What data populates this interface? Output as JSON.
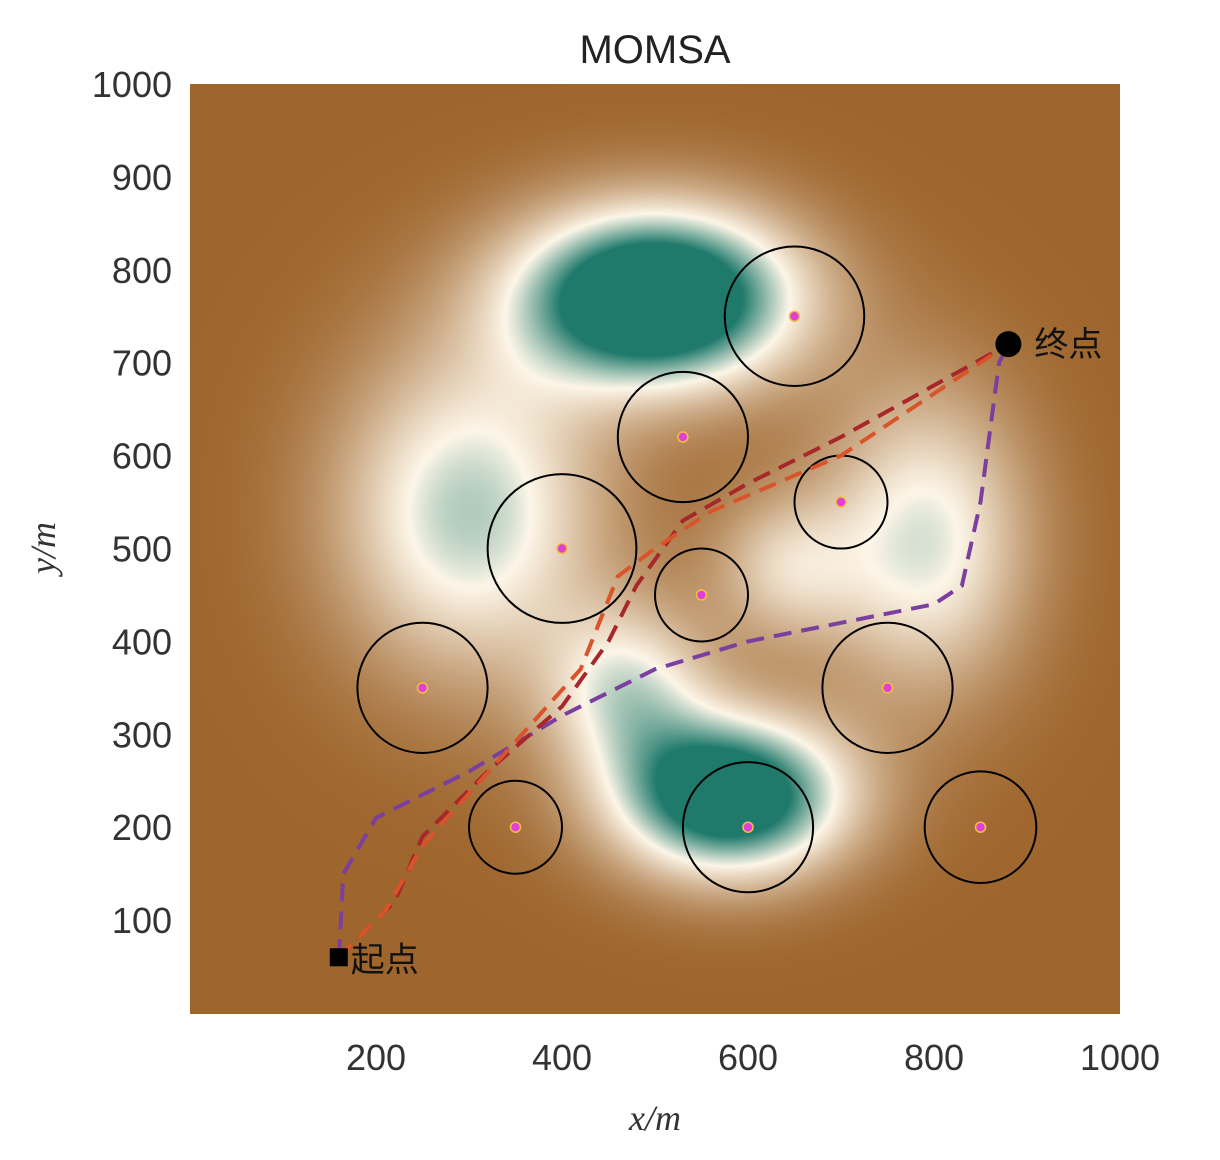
{
  "chart_data": {
    "type": "line",
    "title": "MOMSA",
    "xlabel": "x/m",
    "ylabel": "y/m",
    "xlim": [
      0,
      1000
    ],
    "ylim": [
      0,
      1000
    ],
    "xticks": [
      200,
      400,
      600,
      800,
      1000
    ],
    "yticks": [
      100,
      200,
      300,
      400,
      500,
      600,
      700,
      800,
      900,
      1000
    ],
    "grid": false,
    "start": {
      "label": "起点",
      "x": 160,
      "y": 60
    },
    "end": {
      "label": "终点",
      "x": 880,
      "y": 720
    },
    "obstacles": [
      {
        "x": 650,
        "y": 750,
        "r": 75
      },
      {
        "x": 530,
        "y": 620,
        "r": 70
      },
      {
        "x": 700,
        "y": 550,
        "r": 50
      },
      {
        "x": 400,
        "y": 500,
        "r": 80
      },
      {
        "x": 550,
        "y": 450,
        "r": 50
      },
      {
        "x": 250,
        "y": 350,
        "r": 70
      },
      {
        "x": 750,
        "y": 350,
        "r": 70
      },
      {
        "x": 350,
        "y": 200,
        "r": 50
      },
      {
        "x": 600,
        "y": 200,
        "r": 70
      },
      {
        "x": 850,
        "y": 200,
        "r": 60
      }
    ],
    "series": [
      {
        "name": "path-purple",
        "color": "#7b3fa0",
        "x": [
          160,
          165,
          200,
          300,
          400,
          500,
          600,
          700,
          800,
          830,
          850,
          870,
          880
        ],
        "y": [
          60,
          150,
          210,
          260,
          320,
          370,
          400,
          420,
          440,
          460,
          550,
          700,
          720
        ]
      },
      {
        "name": "path-darkred",
        "color": "#a8272a",
        "x": [
          160,
          220,
          250,
          320,
          400,
          450,
          480,
          530,
          600,
          700,
          880
        ],
        "y": [
          60,
          120,
          190,
          260,
          330,
          400,
          460,
          530,
          570,
          620,
          720
        ]
      },
      {
        "name": "path-orange",
        "color": "#d9542a",
        "x": [
          160,
          210,
          250,
          330,
          420,
          460,
          500,
          560,
          700,
          880
        ],
        "y": [
          60,
          110,
          180,
          270,
          370,
          470,
          500,
          540,
          600,
          720
        ]
      }
    ],
    "colors": {
      "low": "#9e652c",
      "mid": "#fdf6e8",
      "high": "#1f7a6c",
      "obstacle_center": "#e23fd6"
    }
  }
}
